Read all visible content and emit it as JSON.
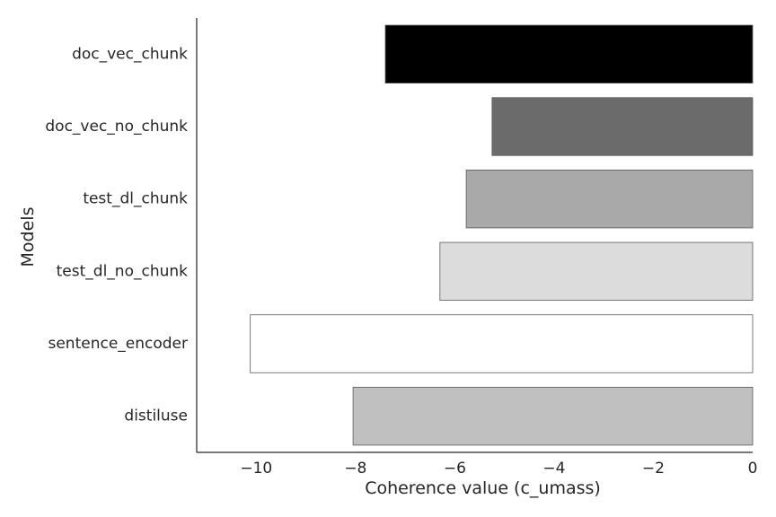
{
  "chart_data": {
    "type": "bar",
    "orientation": "horizontal",
    "categories": [
      "doc_vec_chunk",
      "doc_vec_no_chunk",
      "test_dl_chunk",
      "test_dl_no_chunk",
      "sentence_encoder",
      "distiluse"
    ],
    "values": [
      -7.4,
      -5.25,
      -5.77,
      -6.3,
      -10.12,
      -8.05
    ],
    "bar_colors": [
      "#000000",
      "#6b6b6b",
      "#a9a9a9",
      "#dcdcdc",
      "#ffffff",
      "#c0c0c0"
    ],
    "xlabel": "Coherence value (c_umass)",
    "ylabel": "Models",
    "xlim": [
      -11.2,
      0
    ],
    "xticks": [
      -10,
      -8,
      -6,
      -4,
      -2,
      0
    ],
    "xtick_labels": [
      "−10",
      "−8",
      "−6",
      "−4",
      "−2",
      "0"
    ],
    "grid": false
  }
}
